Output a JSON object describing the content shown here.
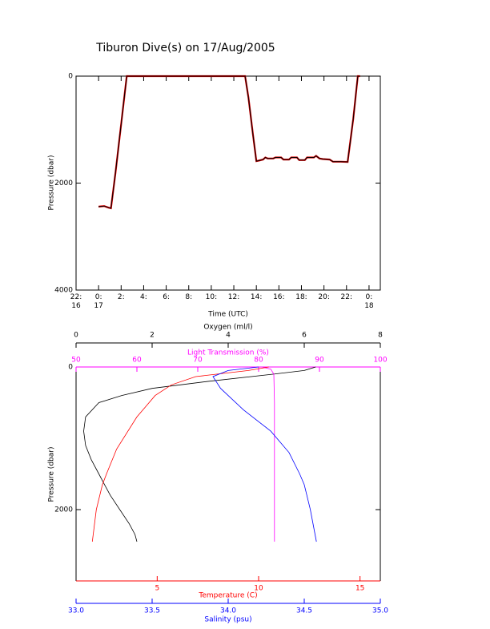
{
  "chart_data": [
    {
      "type": "line",
      "title": "Tiburon Dive(s) on 17/Aug/2005",
      "x_label": "Time (UTC)",
      "y_label": "Pressure (dbar)",
      "x": [
        0,
        0.5,
        0.9,
        1.1,
        1.5,
        2.0,
        2.5,
        3,
        6,
        9,
        12,
        13.0,
        13.3,
        13.7,
        14.0,
        14.2,
        14.6,
        14.8,
        15.0,
        15.5,
        15.7,
        16.2,
        16.4,
        16.9,
        17.1,
        17.6,
        17.8,
        18.3,
        18.5,
        19.1,
        19.3,
        19.6,
        19.9,
        20.5,
        20.8,
        21.5,
        22.1,
        22.6,
        23.0,
        23.2
      ],
      "values": [
        2440,
        2430,
        2460,
        2470,
        1800,
        900,
        0,
        0,
        0,
        0,
        0,
        0,
        400,
        1100,
        1590,
        1580,
        1560,
        1520,
        1540,
        1540,
        1520,
        1520,
        1560,
        1560,
        1520,
        1520,
        1570,
        1570,
        1520,
        1520,
        1490,
        1540,
        1550,
        1560,
        1600,
        1600,
        1605,
        800,
        0,
        0
      ],
      "color": "#000000",
      "xlim": [
        -2,
        25
      ],
      "xticks": [
        {
          "value": -2,
          "label": "22:\n16"
        },
        {
          "value": 0,
          "label": "0:\n17"
        },
        {
          "value": 2,
          "label": "2:"
        },
        {
          "value": 4,
          "label": "4:"
        },
        {
          "value": 6,
          "label": "6:"
        },
        {
          "value": 8,
          "label": "8:"
        },
        {
          "value": 10,
          "label": "10:"
        },
        {
          "value": 12,
          "label": "12:"
        },
        {
          "value": 14,
          "label": "14:"
        },
        {
          "value": 16,
          "label": "16:"
        },
        {
          "value": 18,
          "label": "18:"
        },
        {
          "value": 20,
          "label": "20:"
        },
        {
          "value": 22,
          "label": "22:"
        },
        {
          "value": 24,
          "label": "0:\n18"
        }
      ],
      "ylim": [
        4000,
        0
      ],
      "yticks": [
        0,
        2000,
        4000
      ]
    },
    {
      "type": "profile",
      "y_label": "Pressure (dbar)",
      "ylim": [
        3000,
        0
      ],
      "yticks": [
        0,
        2000
      ],
      "x_axes": [
        {
          "label": "Oxygen (ml/l)",
          "color": "#000000",
          "xlim": [
            0,
            8
          ],
          "xticks": [
            0,
            2,
            4,
            6,
            8
          ]
        },
        {
          "label": "Light Transmission (%)",
          "color": "#ff00ff",
          "xlim": [
            50,
            100
          ],
          "xticks": [
            50,
            60,
            70,
            80,
            90,
            100
          ]
        },
        {
          "label": "Temperature (C)",
          "color": "#ff0000",
          "xlim": [
            1,
            16
          ],
          "xticks": [
            5,
            10,
            15
          ]
        },
        {
          "label": "Salinity (psu)",
          "color": "#0000ff",
          "xlim": [
            33,
            35
          ],
          "xticks": [
            {
              "value": 33,
              "label": "33.0"
            },
            {
              "value": 33.5,
              "label": "33.5"
            },
            {
              "value": 34,
              "label": "34.0"
            },
            {
              "value": 34.5,
              "label": "34.5"
            },
            {
              "value": 35,
              "label": "35.0"
            }
          ]
        }
      ],
      "series": [
        {
          "axis": 0,
          "color": "#000000",
          "x": [
            6.3,
            6.0,
            5.2,
            3.5,
            2.0,
            1.2,
            0.6,
            0.25,
            0.2,
            0.25,
            0.4,
            0.6,
            0.75,
            0.9,
            1.15,
            1.4,
            1.55,
            1.6
          ],
          "y": [
            0,
            50,
            100,
            200,
            300,
            400,
            500,
            700,
            900,
            1100,
            1300,
            1500,
            1650,
            1800,
            2000,
            2200,
            2350,
            2450
          ]
        },
        {
          "axis": 1,
          "color": "#ff00ff",
          "x": [
            80.5,
            82,
            82.5,
            82.6,
            82.6,
            82.6,
            82.6,
            82.6
          ],
          "y": [
            0,
            30,
            100,
            500,
            1000,
            1500,
            2000,
            2450
          ]
        },
        {
          "axis": 2,
          "color": "#ff0000",
          "x": [
            10.5,
            9.5,
            6.9,
            5.7,
            4.9,
            4.0,
            3.0,
            2.5,
            2.3,
            2.0,
            1.8
          ],
          "y": [
            0,
            50,
            135,
            250,
            400,
            700,
            1150,
            1500,
            1650,
            2000,
            2450
          ]
        },
        {
          "axis": 3,
          "color": "#0000ff",
          "x": [
            34.2,
            34.0,
            33.9,
            33.95,
            34.1,
            34.28,
            34.4,
            34.47,
            34.5,
            34.54,
            34.58
          ],
          "y": [
            0,
            50,
            135,
            300,
            600,
            900,
            1200,
            1500,
            1650,
            2000,
            2450
          ]
        }
      ]
    }
  ]
}
